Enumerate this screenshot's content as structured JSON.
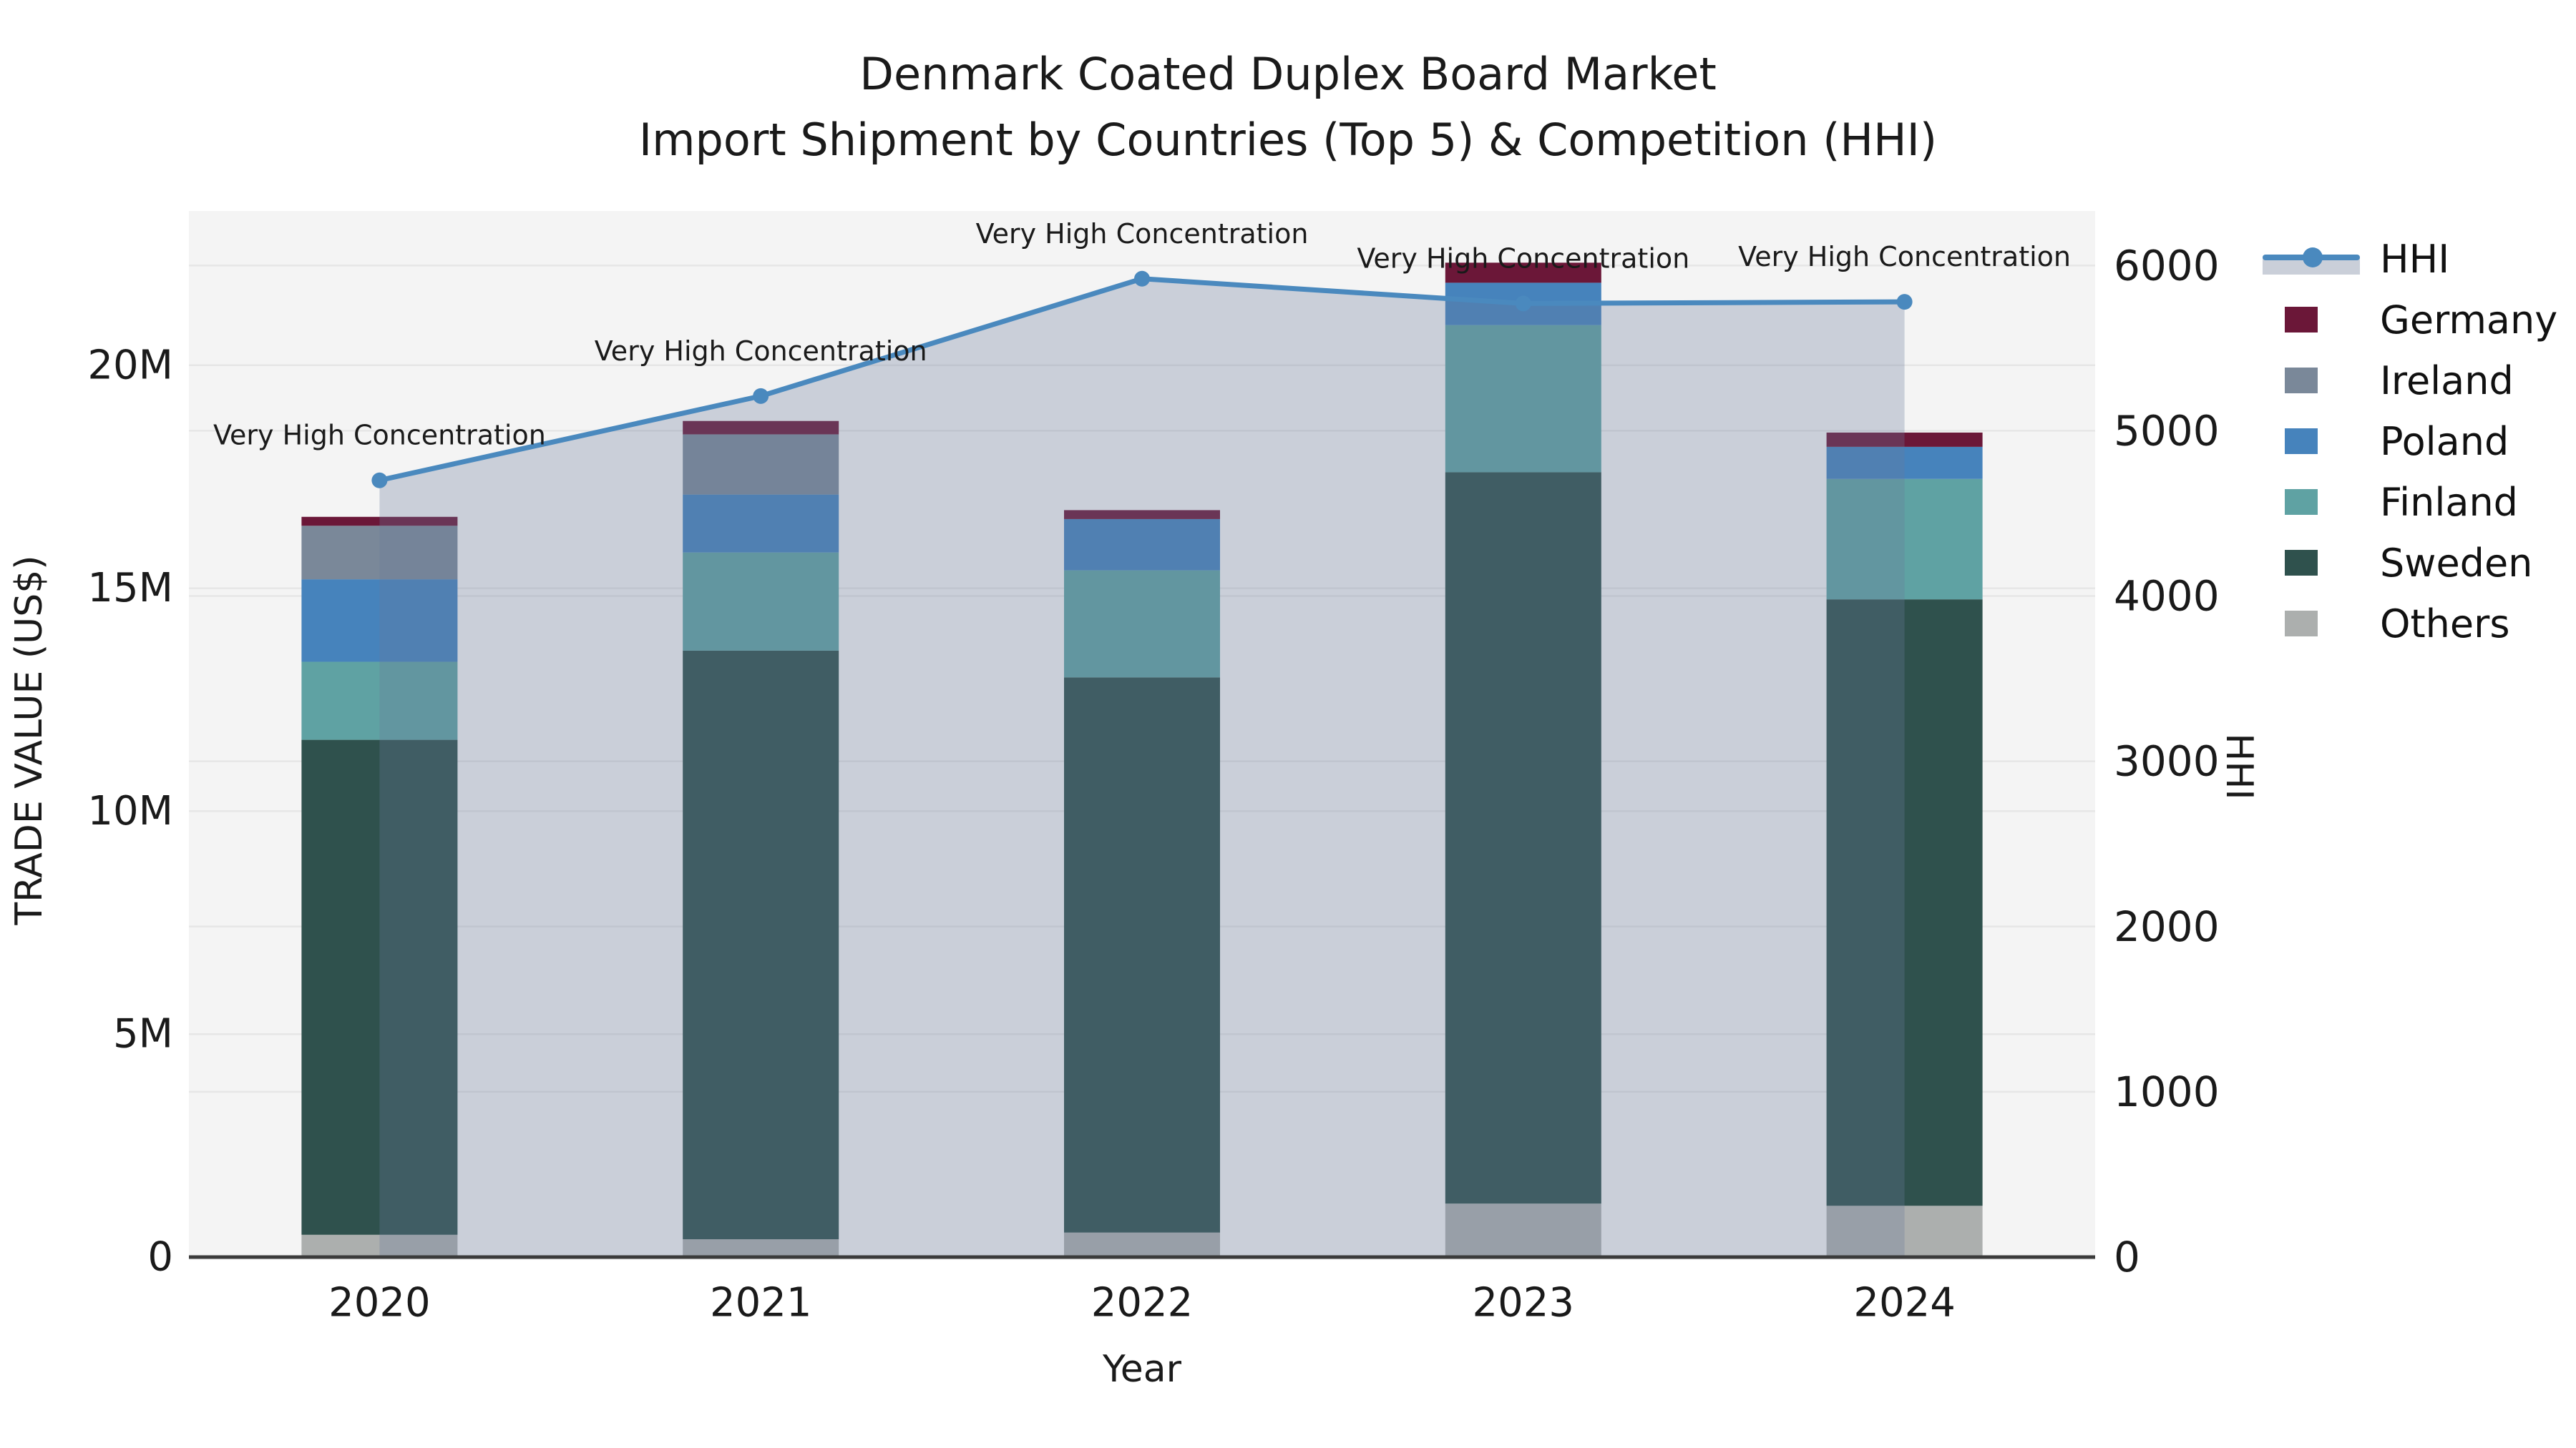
{
  "title": {
    "line1": "Denmark Coated Duplex Board Market",
    "line2": "Import Shipment by Countries (Top 5) & Competition (HHI)"
  },
  "chart_data": {
    "type": "stacked-bar+line",
    "x_axis": {
      "label": "Year",
      "categories": [
        "2020",
        "2021",
        "2022",
        "2023",
        "2024"
      ]
    },
    "left_axis": {
      "label": "TRADE VALUE (US$)",
      "tick_values": [
        0,
        5,
        10,
        15,
        20
      ],
      "tick_labels": [
        "0",
        "5M",
        "10M",
        "15M",
        "20M"
      ],
      "range": [
        0,
        23.46
      ]
    },
    "right_axis": {
      "label": "HHI",
      "tick_values": [
        0,
        1000,
        2000,
        3000,
        4000,
        5000,
        6000
      ],
      "tick_labels": [
        "0",
        "1000",
        "2000",
        "3000",
        "4000",
        "5000",
        "6000"
      ],
      "range": [
        0,
        6330
      ]
    },
    "bar_series_bottom_to_top": [
      {
        "name": "Others",
        "color": "#ACAFAE",
        "values": [
          0.5,
          0.4,
          0.55,
          1.2,
          1.15
        ]
      },
      {
        "name": "Sweden",
        "color": "#2F514D",
        "values": [
          11.1,
          13.2,
          12.45,
          16.4,
          13.6
        ]
      },
      {
        "name": "Finland",
        "color": "#5FA2A3",
        "values": [
          1.75,
          2.2,
          2.4,
          3.3,
          2.7
        ]
      },
      {
        "name": "Poland",
        "color": "#4683BC",
        "values": [
          1.85,
          1.3,
          1.15,
          0.95,
          0.72
        ]
      },
      {
        "name": "Ireland",
        "color": "#7A8899",
        "values": [
          1.2,
          1.35,
          0.0,
          0.0,
          0.0
        ]
      },
      {
        "name": "Germany",
        "color": "#6B1738",
        "values": [
          0.2,
          0.3,
          0.2,
          0.45,
          0.32
        ]
      }
    ],
    "hhi_line": {
      "name": "HHI",
      "color": "#4A89BE",
      "area_fill": "rgba(105,122,155,0.30)",
      "values": [
        4700,
        5210,
        5920,
        5770,
        5780
      ]
    },
    "annotations": [
      {
        "year": "2020",
        "text": "Very High Concentration"
      },
      {
        "year": "2021",
        "text": "Very High Concentration"
      },
      {
        "year": "2022",
        "text": "Very High Concentration"
      },
      {
        "year": "2023",
        "text": "Very High Concentration"
      },
      {
        "year": "2024",
        "text": "Very High Concentration"
      }
    ],
    "legend_order": [
      "HHI",
      "Germany",
      "Ireland",
      "Poland",
      "Finland",
      "Sweden",
      "Others"
    ],
    "style": {
      "plot_background": "#F4F4F4",
      "gridline_color": "#E6E6E6",
      "axis_line_color": "#3B3B3B",
      "text_color": "#1a1a1a"
    }
  }
}
